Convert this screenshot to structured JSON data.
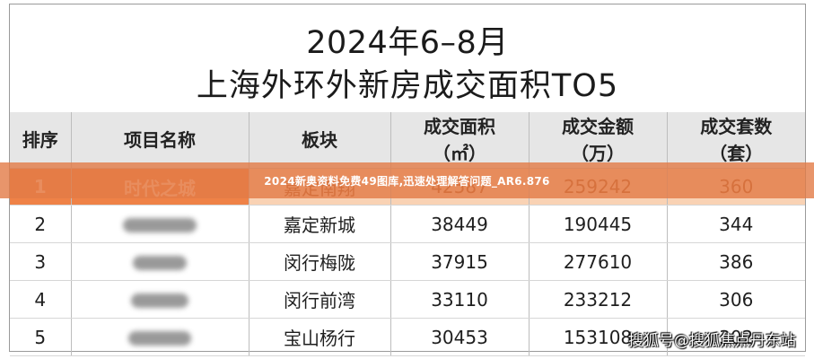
{
  "title": {
    "line1": "2024年6–8月",
    "line2": "上海外环外新房成交面积TO5"
  },
  "table": {
    "headers": [
      {
        "line1": "排序",
        "line2": ""
      },
      {
        "line1": "项目名称",
        "line2": ""
      },
      {
        "line1": "板块",
        "line2": ""
      },
      {
        "line1": "成交面积",
        "line2": "（㎡）"
      },
      {
        "line1": "成交金额",
        "line2": "（万）"
      },
      {
        "line1": "成交套数",
        "line2": "（套）"
      }
    ],
    "rows": [
      {
        "rank": "1",
        "project": "时代之城",
        "block": "嘉定南翔",
        "area": "42587",
        "amount": "259242",
        "units": "360"
      },
      {
        "rank": "2",
        "project": "",
        "block": "嘉定新城",
        "area": "38449",
        "amount": "190445",
        "units": "344"
      },
      {
        "rank": "3",
        "project": "",
        "block": "闵行梅陇",
        "area": "37915",
        "amount": "277610",
        "units": "386"
      },
      {
        "rank": "4",
        "project": "",
        "block": "闵行前湾",
        "area": "33110",
        "amount": "233212",
        "units": "306"
      },
      {
        "rank": "5",
        "project": "",
        "block": "宝山杨行",
        "area": "30453",
        "amount": "153108",
        "units": "302"
      }
    ]
  },
  "banner": {
    "text": "2024新奥资料免费49图库,迅速处理解答问题_AR6.876"
  },
  "watermark": {
    "text": "搜狐号@搜狐焦点丹东站"
  },
  "colors": {
    "highlight_row": "#f9d2b4",
    "highlight_cell": "#ef8247",
    "banner": "#e27b46",
    "header_bg": "#e6e6e6"
  }
}
